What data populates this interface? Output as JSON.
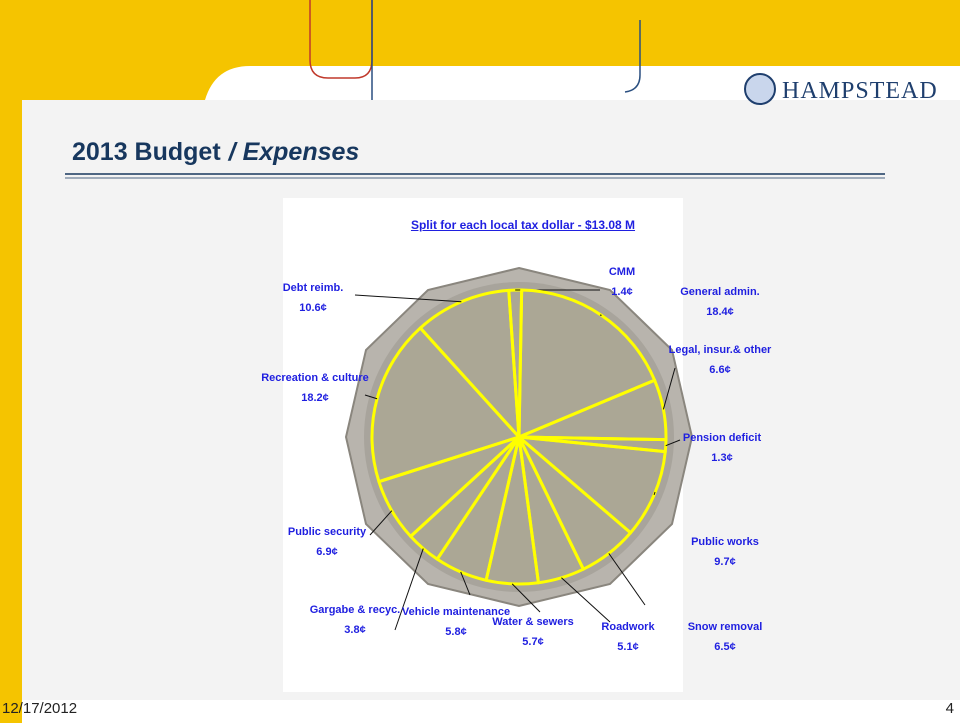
{
  "slide": {
    "title": "2013 Budget",
    "title_italic": "/ Expenses",
    "logo": "HAMPSTEAD",
    "date": "12/17/2012",
    "page": "4"
  },
  "chart_data": {
    "type": "pie",
    "title": "Split for each local tax dollar - $13.08 M",
    "categories": [
      "CMM",
      "General admin.",
      "Legal, insur.& other",
      "Pension deficit",
      "Public works",
      "Snow removal",
      "Roadwork",
      "Water & sewers",
      "Vehicle maintenance",
      "Gargabe & recyc.",
      "Public security",
      "Recreation & culture",
      "Debt reimb."
    ],
    "values": [
      1.4,
      18.4,
      6.6,
      1.3,
      9.7,
      6.5,
      5.1,
      5.7,
      5.8,
      3.8,
      6.9,
      18.2,
      10.6
    ],
    "value_labels": [
      "1.4¢",
      "18.4¢",
      "6.6¢",
      "1.3¢",
      "9.7¢",
      "6.5¢",
      "5.1¢",
      "5.7¢",
      "5.8¢",
      "3.8¢",
      "6.9¢",
      "18.2¢",
      "10.6¢"
    ],
    "color": "#ffff00"
  }
}
